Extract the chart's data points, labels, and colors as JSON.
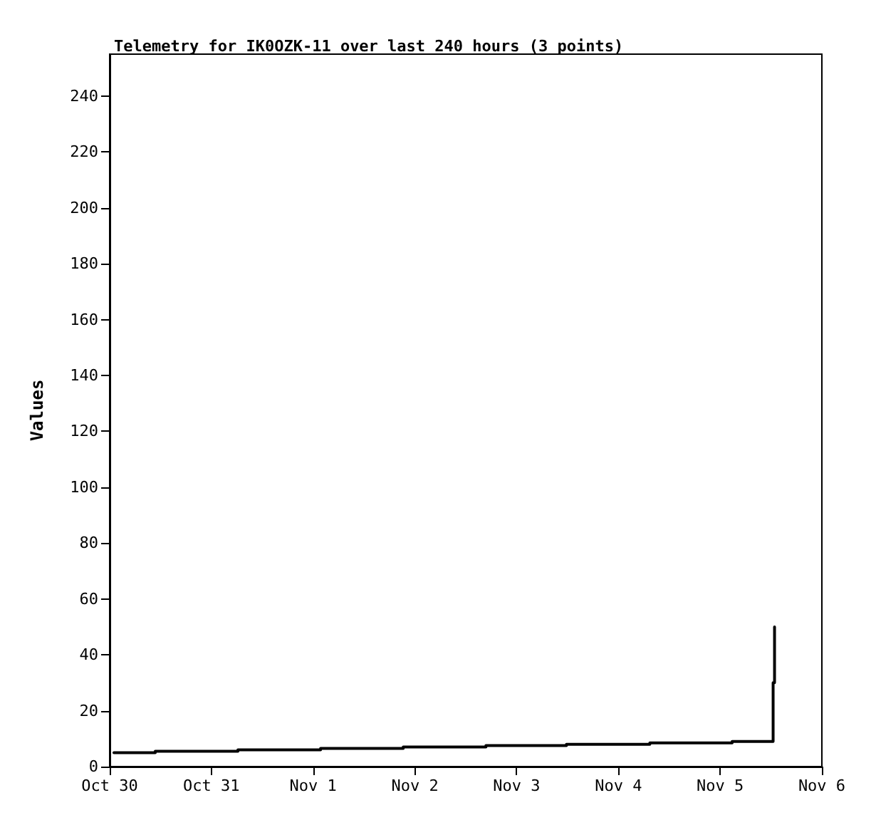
{
  "chart_data": {
    "type": "step",
    "title": "Telemetry for IK0OZK-11 over last 240 hours (3 points)",
    "ylabel": "Values",
    "x": [
      "--10-30T01:00",
      "--10-30T10:45",
      "--10-31T06:15",
      "--11-01T01:45",
      "--11-01T21:15",
      "--11-02T16:45",
      "--11-03T11:45",
      "--11-04T07:25",
      "--11-05T02:50",
      "--11-05T12:30",
      "--11-05T12:50"
    ],
    "values": [
      5,
      5.5,
      6,
      6.5,
      7,
      7.5,
      8,
      8.5,
      9,
      30,
      50
    ],
    "color": "#000000",
    "xlim": [
      "--10-30",
      "--11-06"
    ],
    "xticks": [
      {
        "value": "--10-30",
        "label": "Oct 30"
      },
      {
        "value": "--10-31",
        "label": "Oct 31"
      },
      {
        "value": "--11-01",
        "label": "Nov 1"
      },
      {
        "value": "--11-02",
        "label": "Nov 2"
      },
      {
        "value": "--11-03",
        "label": "Nov 3"
      },
      {
        "value": "--11-04",
        "label": "Nov 4"
      },
      {
        "value": "--11-05",
        "label": "Nov 5"
      },
      {
        "value": "--11-06",
        "label": "Nov 6"
      }
    ],
    "ylim": [
      0,
      255
    ],
    "yticks": [
      0,
      20,
      40,
      60,
      80,
      100,
      120,
      140,
      160,
      180,
      200,
      220,
      240
    ],
    "grid": false,
    "marker": "none",
    "line_style": "solid"
  }
}
